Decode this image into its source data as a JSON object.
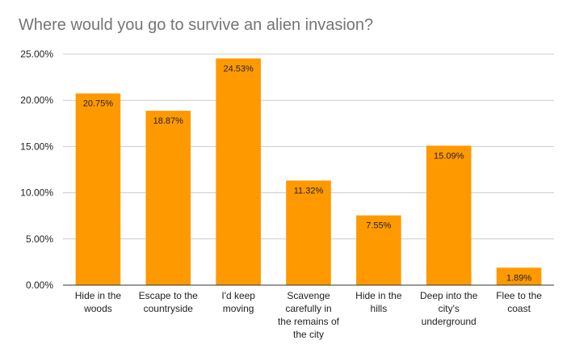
{
  "chart_data": {
    "type": "bar",
    "title": "Where would you go to survive an alien invasion?",
    "xlabel": "",
    "ylabel": "",
    "categories": [
      "Hide in the woods",
      "Escape to the countryside",
      "I'd keep moving",
      "Scavenge carefully in the remains of the city",
      "Hide in the hills",
      "Deep into the city's underground",
      "Flee to the coast"
    ],
    "category_lines": [
      [
        "Hide in the",
        "woods"
      ],
      [
        "Escape to the",
        "countryside"
      ],
      [
        "I'd keep",
        "moving"
      ],
      [
        "Scavenge",
        "carefully in",
        "the remains of",
        "the city"
      ],
      [
        "Hide in the",
        "hills"
      ],
      [
        "Deep into the",
        "city's",
        "underground"
      ],
      [
        "Flee to the",
        "coast"
      ]
    ],
    "values": [
      20.75,
      18.87,
      24.53,
      11.32,
      7.55,
      15.09,
      1.89
    ],
    "data_labels": [
      "20.75%",
      "18.87%",
      "24.53%",
      "11.32%",
      "7.55%",
      "15.09%",
      "1.89%"
    ],
    "ylim": [
      0,
      25
    ],
    "yticks": [
      0,
      5,
      10,
      15,
      20,
      25
    ],
    "ytick_labels": [
      "0.00%",
      "5.00%",
      "10.00%",
      "15.00%",
      "20.00%",
      "25.00%"
    ],
    "grid": true,
    "legend": "none",
    "colors": {
      "bar": "#ff9900",
      "grid": "#cccccc",
      "axis": "#333333"
    }
  }
}
